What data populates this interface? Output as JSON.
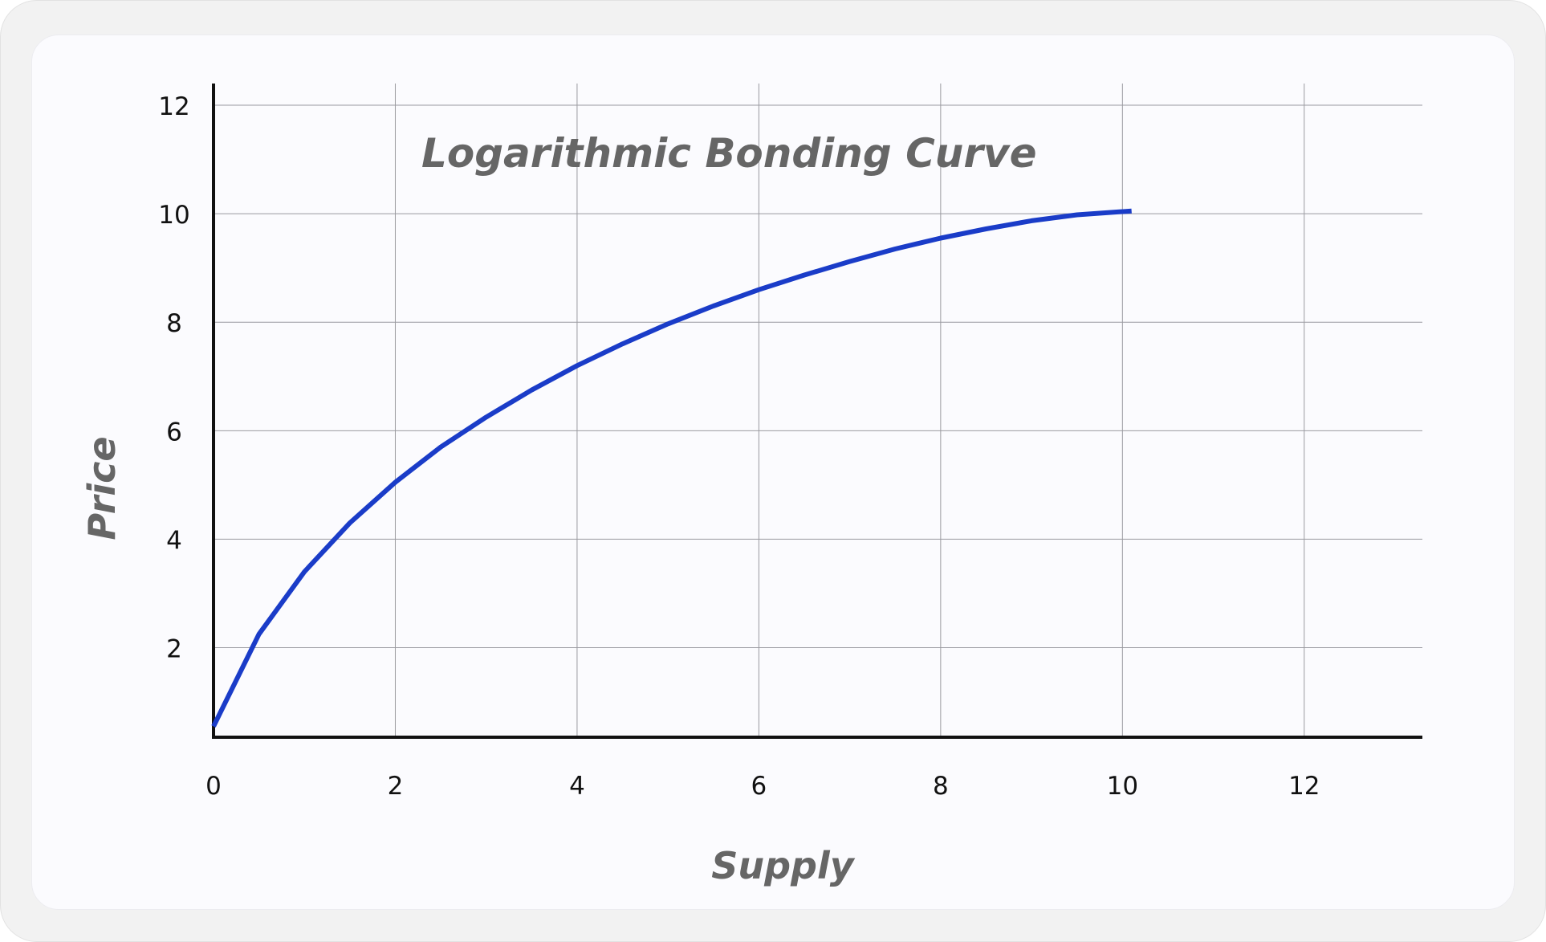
{
  "chart_data": {
    "type": "line",
    "title": "Logarithmic Bonding Curve",
    "xlabel": "Supply",
    "ylabel": "Price",
    "xlim": [
      0,
      13.3
    ],
    "ylim": [
      0.35,
      12.4
    ],
    "xticks": [
      0,
      2,
      4,
      6,
      8,
      10,
      12
    ],
    "yticks": [
      2,
      4,
      6,
      8,
      10,
      12
    ],
    "grid": true,
    "colors": {
      "line": "#1a3cc8",
      "grid": "#9a9aa0",
      "axis": "#111111"
    },
    "series": [
      {
        "x": [
          0,
          0.5,
          1,
          1.5,
          2,
          2.5,
          3,
          3.5,
          4,
          4.5,
          5,
          5.5,
          6,
          6.5,
          7,
          7.5,
          8,
          8.5,
          9,
          9.5,
          10.1
        ],
        "values": [
          0.55,
          2.25,
          3.4,
          4.3,
          5.05,
          5.7,
          6.25,
          6.75,
          7.2,
          7.6,
          7.97,
          8.3,
          8.6,
          8.87,
          9.12,
          9.35,
          9.55,
          9.72,
          9.87,
          9.98,
          10.05
        ]
      }
    ]
  }
}
